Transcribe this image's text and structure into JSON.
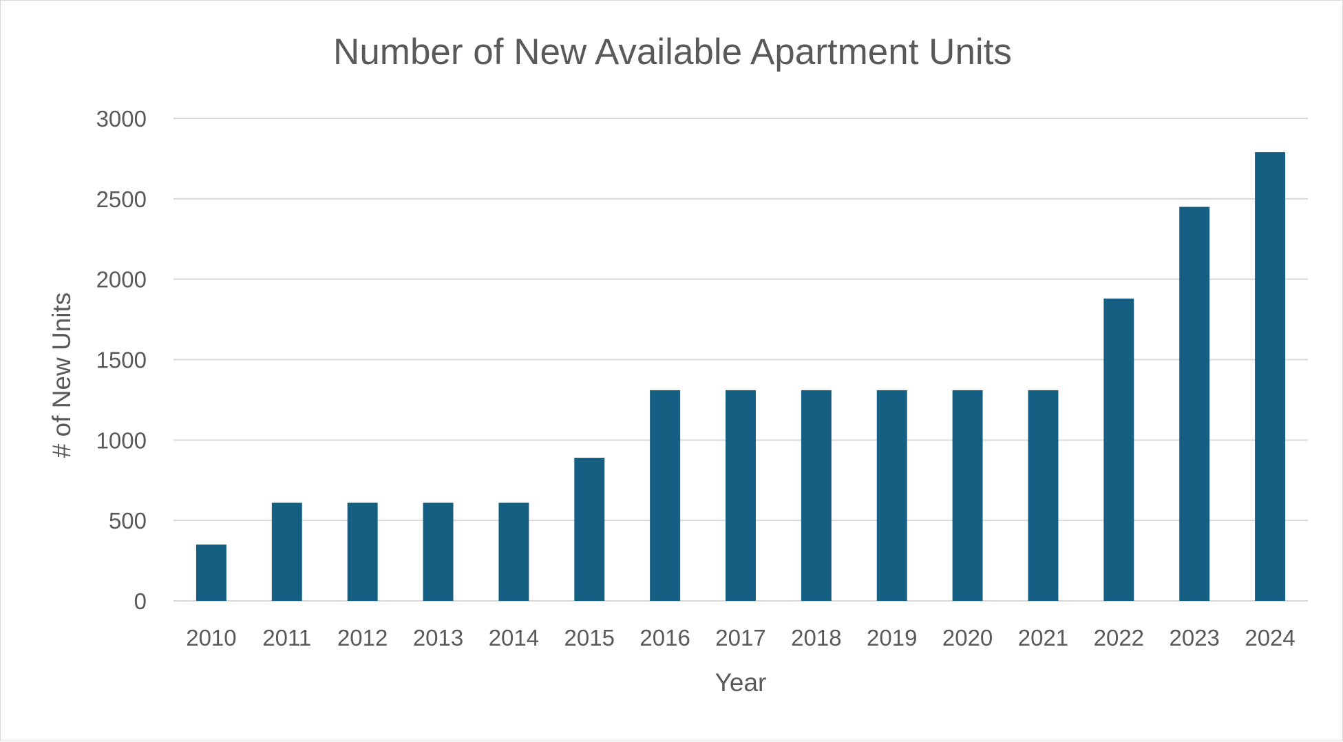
{
  "chart_data": {
    "type": "bar",
    "title": "Number of New Available Apartment Units",
    "xlabel": "Year",
    "ylabel": "# of New Units",
    "categories": [
      "2010",
      "2011",
      "2012",
      "2013",
      "2014",
      "2015",
      "2016",
      "2017",
      "2018",
      "2019",
      "2020",
      "2021",
      "2022",
      "2023",
      "2024"
    ],
    "values": [
      350,
      610,
      610,
      610,
      610,
      890,
      1310,
      1310,
      1310,
      1310,
      1310,
      1310,
      1880,
      2450,
      2790
    ],
    "ylim": [
      0,
      3000
    ],
    "yticks": [
      0,
      500,
      1000,
      1500,
      2000,
      2500,
      3000
    ],
    "grid": true,
    "legend": "none",
    "bar_color": "#156082"
  }
}
